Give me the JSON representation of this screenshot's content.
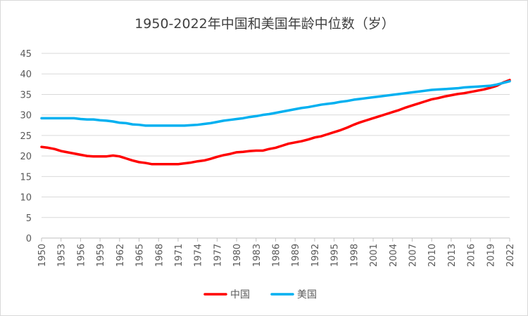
{
  "chart_data": {
    "type": "line",
    "title": "1950-2022年中国和美国年龄中位数（岁）",
    "xlabel": "",
    "ylabel": "",
    "ylim": [
      0,
      45
    ],
    "yticks": [
      0,
      5,
      10,
      15,
      20,
      25,
      30,
      35,
      40,
      45
    ],
    "x": [
      1950,
      1951,
      1952,
      1953,
      1954,
      1955,
      1956,
      1957,
      1958,
      1959,
      1960,
      1961,
      1962,
      1963,
      1964,
      1965,
      1966,
      1967,
      1968,
      1969,
      1970,
      1971,
      1972,
      1973,
      1974,
      1975,
      1976,
      1977,
      1978,
      1979,
      1980,
      1981,
      1982,
      1983,
      1984,
      1985,
      1986,
      1987,
      1988,
      1989,
      1990,
      1991,
      1992,
      1993,
      1994,
      1995,
      1996,
      1997,
      1998,
      1999,
      2000,
      2001,
      2002,
      2003,
      2004,
      2005,
      2006,
      2007,
      2008,
      2009,
      2010,
      2011,
      2012,
      2013,
      2014,
      2015,
      2016,
      2017,
      2018,
      2019,
      2020,
      2021,
      2022
    ],
    "xtick_labels": [
      "1950",
      "1953",
      "1956",
      "1959",
      "1962",
      "1965",
      "1968",
      "1971",
      "1974",
      "1977",
      "1980",
      "1983",
      "1986",
      "1989",
      "1992",
      "1995",
      "1998",
      "2001",
      "2004",
      "2007",
      "2010",
      "2013",
      "2016",
      "2019",
      "2022"
    ],
    "grid": "horizontal",
    "legend_position": "bottom",
    "series": [
      {
        "name": "中国",
        "color": "#ff0000",
        "values": [
          22.2,
          22.0,
          21.7,
          21.2,
          20.9,
          20.6,
          20.3,
          20.0,
          19.9,
          19.9,
          19.9,
          20.1,
          19.9,
          19.4,
          18.9,
          18.5,
          18.3,
          18.0,
          18.0,
          18.0,
          18.0,
          18.0,
          18.2,
          18.4,
          18.7,
          18.9,
          19.3,
          19.8,
          20.2,
          20.5,
          20.9,
          21.0,
          21.2,
          21.3,
          21.3,
          21.7,
          22.0,
          22.5,
          23.0,
          23.3,
          23.6,
          24.0,
          24.5,
          24.8,
          25.3,
          25.8,
          26.3,
          26.9,
          27.6,
          28.2,
          28.7,
          29.2,
          29.7,
          30.2,
          30.7,
          31.2,
          31.8,
          32.3,
          32.8,
          33.3,
          33.8,
          34.1,
          34.5,
          34.8,
          35.1,
          35.3,
          35.6,
          35.9,
          36.2,
          36.6,
          37.1,
          37.9,
          38.5
        ]
      },
      {
        "name": "美国",
        "color": "#00b0f0",
        "values": [
          29.2,
          29.2,
          29.2,
          29.2,
          29.2,
          29.2,
          29.0,
          28.9,
          28.9,
          28.7,
          28.6,
          28.4,
          28.1,
          28.0,
          27.7,
          27.6,
          27.4,
          27.4,
          27.4,
          27.4,
          27.4,
          27.4,
          27.4,
          27.5,
          27.6,
          27.8,
          28.0,
          28.3,
          28.6,
          28.8,
          29.0,
          29.2,
          29.5,
          29.7,
          30.0,
          30.2,
          30.5,
          30.8,
          31.1,
          31.4,
          31.7,
          31.9,
          32.2,
          32.5,
          32.7,
          32.9,
          33.2,
          33.4,
          33.7,
          33.9,
          34.1,
          34.3,
          34.5,
          34.7,
          34.9,
          35.1,
          35.3,
          35.5,
          35.7,
          35.9,
          36.1,
          36.2,
          36.3,
          36.4,
          36.5,
          36.7,
          36.8,
          36.9,
          37.0,
          37.1,
          37.4,
          37.8,
          38.2
        ]
      }
    ]
  }
}
